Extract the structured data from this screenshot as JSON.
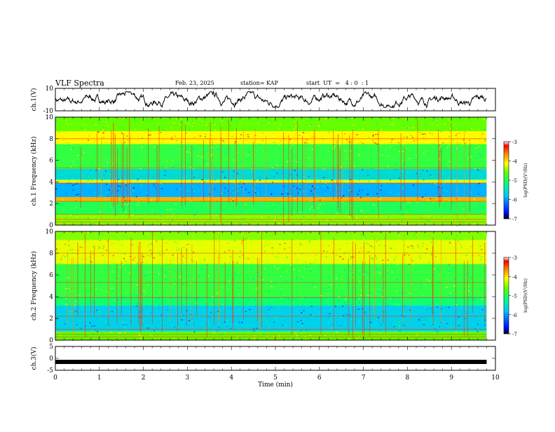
{
  "header": {
    "title": "VLF Spectra",
    "date": "Feb. 23, 2025",
    "station": "station= KAP",
    "start": "start  UT  =   4 : 0  : 1"
  },
  "chart_data": [
    {
      "type": "line",
      "ylabel": "ch.1(V)",
      "ylim": [
        -10,
        10
      ],
      "yticks": [
        "10",
        "-10"
      ],
      "xlim": [
        0,
        10
      ],
      "series": [
        {
          "description": "noisy waveform oscillating roughly between -5 and 5 V over 0 to 9.8 min"
        }
      ]
    },
    {
      "type": "heatmap",
      "ylabel": "ch.1  Frequency  (kHz)",
      "ylim": [
        0,
        10
      ],
      "yticks": [
        "0",
        "2",
        "4",
        "6",
        "8",
        "10"
      ],
      "xlim": [
        0,
        9.8
      ],
      "colorbar": {
        "label": "log(PSD)(V²/Hz)",
        "range": [
          -7,
          -3
        ],
        "ticks": [
          "-3",
          "-4",
          "-5",
          "-6",
          "-7"
        ]
      },
      "bands_khz": [
        {
          "from": 0,
          "to": 1.0,
          "level": -4.5
        },
        {
          "from": 1.0,
          "to": 2.2,
          "level": -5.0
        },
        {
          "from": 2.2,
          "to": 2.6,
          "level": -3.8
        },
        {
          "from": 2.6,
          "to": 3.9,
          "level": -5.9
        },
        {
          "from": 3.9,
          "to": 4.2,
          "level": -4.2
        },
        {
          "from": 4.2,
          "to": 5.2,
          "level": -5.6
        },
        {
          "from": 5.2,
          "to": 7.5,
          "level": -4.9
        },
        {
          "from": 7.5,
          "to": 8.7,
          "level": -4.1
        },
        {
          "from": 8.7,
          "to": 10,
          "level": -4.6
        }
      ]
    },
    {
      "type": "heatmap",
      "ylabel": "ch.2  Frequency  (kHz)",
      "ylim": [
        0,
        10
      ],
      "yticks": [
        "0",
        "2",
        "4",
        "6",
        "8",
        "10"
      ],
      "xlim": [
        0,
        9.8
      ],
      "colorbar": {
        "label": "log(PSD)(V²/Hz)",
        "range": [
          -7,
          -3
        ],
        "ticks": [
          "-3",
          "-4",
          "-5",
          "-6",
          "-7"
        ]
      },
      "bands_khz": [
        {
          "from": 0,
          "to": 0.8,
          "level": -4.6
        },
        {
          "from": 0.8,
          "to": 3.2,
          "level": -5.7
        },
        {
          "from": 3.2,
          "to": 4.0,
          "level": -5.1
        },
        {
          "from": 4.0,
          "to": 7.0,
          "level": -4.9
        },
        {
          "from": 7.0,
          "to": 9.2,
          "level": -4.2
        },
        {
          "from": 9.2,
          "to": 10,
          "level": -4.5
        }
      ]
    },
    {
      "type": "line",
      "ylabel": "ch.3(V)",
      "ylim": [
        -5,
        5
      ],
      "yticks": [
        "5",
        "0",
        "-5"
      ],
      "xlim": [
        0,
        10
      ],
      "series": [
        {
          "description": "thick flat line near -1 V from 0 to 9.8 min"
        }
      ],
      "xlabel": "Time  (min)",
      "xticks": [
        "0",
        "1",
        "2",
        "3",
        "4",
        "5",
        "6",
        "7",
        "8",
        "9",
        "10"
      ]
    }
  ],
  "colors": {
    "axes": "#000000",
    "waveform": "#000000",
    "colormap": [
      "#000000",
      "#0000ff",
      "#00c8ff",
      "#00ff80",
      "#64ff00",
      "#ffff00",
      "#ff8000",
      "#ff0000",
      "#ffffff"
    ]
  }
}
